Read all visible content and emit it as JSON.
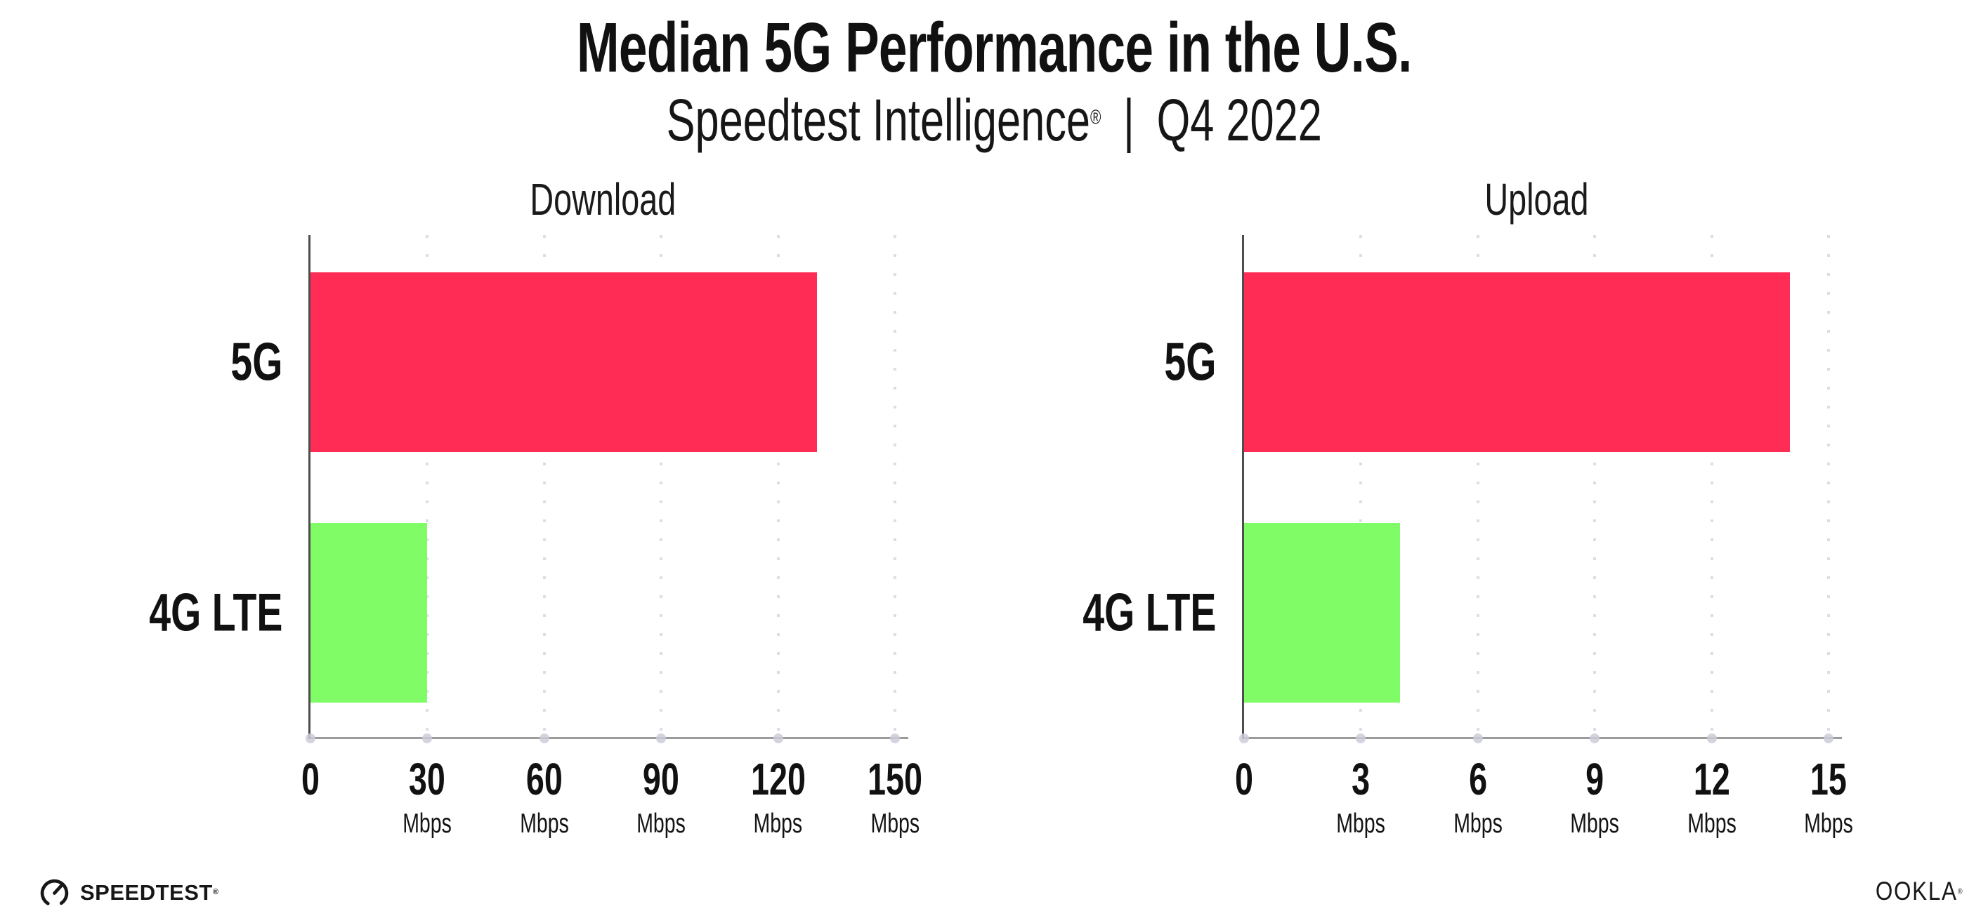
{
  "header": {
    "title": "Median 5G Performance in the U.S.",
    "subtitle_brand": "Speedtest Intelligence",
    "subtitle_reg": "®",
    "subtitle_separator": "|",
    "subtitle_period": "Q4 2022"
  },
  "chart_data": [
    {
      "type": "bar",
      "orientation": "horizontal",
      "title": "Download",
      "categories": [
        "5G",
        "4G LTE"
      ],
      "values": [
        130,
        30
      ],
      "unit": "Mbps",
      "bar_colors": [
        "#FF2D55",
        "#80FC66"
      ],
      "xlim": [
        0,
        150
      ],
      "xticks": [
        0,
        30,
        60,
        90,
        120,
        150
      ],
      "tick_unit_label": "Mbps",
      "grid": "dotted-vertical",
      "legend": "none"
    },
    {
      "type": "bar",
      "orientation": "horizontal",
      "title": "Upload",
      "categories": [
        "5G",
        "4G LTE"
      ],
      "values": [
        14,
        4
      ],
      "unit": "Mbps",
      "bar_colors": [
        "#FF2D55",
        "#80FC66"
      ],
      "xlim": [
        0,
        15
      ],
      "xticks": [
        0,
        3,
        6,
        9,
        12,
        15
      ],
      "tick_unit_label": "Mbps",
      "grid": "dotted-vertical",
      "legend": "none"
    }
  ],
  "footer": {
    "speedtest_label": "SPEEDTEST",
    "speedtest_mark": "®",
    "ookla_label": "OOKLA",
    "ookla_mark": "®"
  },
  "colors": {
    "bar_5g": "#FF2D55",
    "bar_4g_lte": "#80FC66",
    "y_axis": "#4d4d4d",
    "x_axis": "#9b9b9b",
    "gridline": "#dddde6",
    "background": "#FFFFFF",
    "text": "#111111"
  }
}
